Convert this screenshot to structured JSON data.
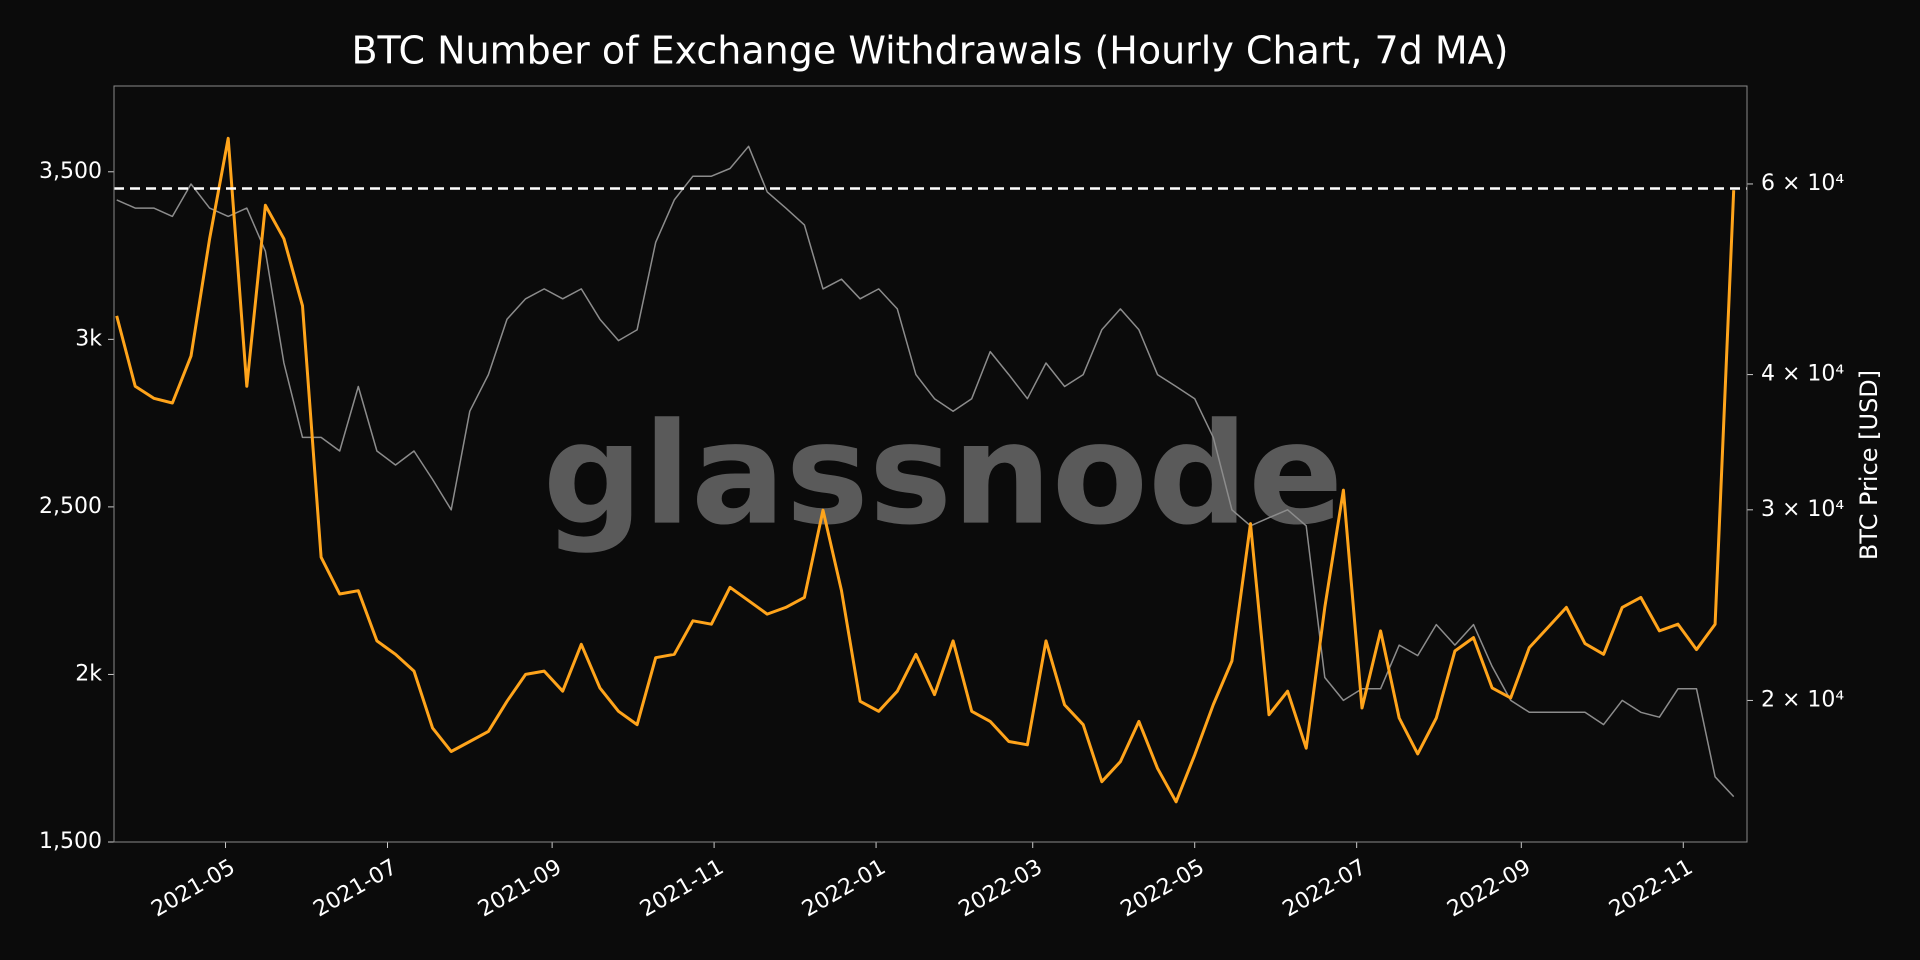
{
  "chart_data": {
    "type": "line",
    "title": "BTC Number of Exchange Withdrawals (Hourly Chart, 7d MA)",
    "y2label": "BTC Price [USD]",
    "watermark": "glassnode",
    "x": [
      "2021-03-21",
      "2021-03-28",
      "2021-04-04",
      "2021-04-11",
      "2021-04-18",
      "2021-04-25",
      "2021-05-02",
      "2021-05-09",
      "2021-05-16",
      "2021-05-23",
      "2021-05-30",
      "2021-06-06",
      "2021-06-13",
      "2021-06-20",
      "2021-06-27",
      "2021-07-04",
      "2021-07-11",
      "2021-07-18",
      "2021-07-25",
      "2021-08-01",
      "2021-08-08",
      "2021-08-15",
      "2021-08-22",
      "2021-08-29",
      "2021-09-05",
      "2021-09-12",
      "2021-09-19",
      "2021-09-26",
      "2021-10-03",
      "2021-10-10",
      "2021-10-17",
      "2021-10-24",
      "2021-10-31",
      "2021-11-07",
      "2021-11-14",
      "2021-11-21",
      "2021-11-28",
      "2021-12-05",
      "2021-12-12",
      "2021-12-19",
      "2021-12-26",
      "2022-01-02",
      "2022-01-09",
      "2022-01-16",
      "2022-01-23",
      "2022-01-30",
      "2022-02-06",
      "2022-02-13",
      "2022-02-20",
      "2022-02-27",
      "2022-03-06",
      "2022-03-13",
      "2022-03-20",
      "2022-03-27",
      "2022-04-03",
      "2022-04-10",
      "2022-04-17",
      "2022-04-24",
      "2022-05-01",
      "2022-05-08",
      "2022-05-15",
      "2022-05-22",
      "2022-05-29",
      "2022-06-05",
      "2022-06-12",
      "2022-06-19",
      "2022-06-26",
      "2022-07-03",
      "2022-07-10",
      "2022-07-17",
      "2022-07-24",
      "2022-07-31",
      "2022-08-07",
      "2022-08-14",
      "2022-08-21",
      "2022-08-28",
      "2022-09-04",
      "2022-09-11",
      "2022-09-18",
      "2022-09-25",
      "2022-10-02",
      "2022-10-09",
      "2022-10-16",
      "2022-10-23",
      "2022-10-30",
      "2022-11-06",
      "2022-11-13",
      "2022-11-20"
    ],
    "series": [
      {
        "color": "#8c8c8c",
        "axis": "y2",
        "values": [
          58000,
          57000,
          57000,
          56000,
          60000,
          57000,
          56000,
          57000,
          52000,
          41000,
          35000,
          35000,
          34000,
          39000,
          34000,
          33000,
          34000,
          32000,
          30000,
          37000,
          40000,
          45000,
          47000,
          48000,
          47000,
          48000,
          45000,
          43000,
          44000,
          53000,
          58000,
          61000,
          61000,
          62000,
          65000,
          59000,
          57000,
          55000,
          48000,
          49000,
          47000,
          48000,
          46000,
          40000,
          38000,
          37000,
          38000,
          42000,
          40000,
          38000,
          41000,
          39000,
          40000,
          44000,
          46000,
          44000,
          40000,
          39000,
          38000,
          35000,
          30000,
          29000,
          29500,
          30000,
          29000,
          21000,
          20000,
          20500,
          20500,
          22500,
          22000,
          23500,
          22500,
          23500,
          21500,
          20000,
          19500,
          19500,
          19500,
          19500,
          19000,
          20000,
          19500,
          19300,
          20500,
          20500,
          17000,
          16300
        ]
      },
      {
        "color": "#ffa41b",
        "values": [
          3070,
          2860,
          2824,
          2810,
          2950,
          3300,
          3600,
          2860,
          3400,
          3300,
          3100,
          2350,
          2240,
          2250,
          2100,
          2060,
          2010,
          1840,
          1770,
          1800,
          1830,
          1920,
          2000,
          2010,
          1950,
          2090,
          1960,
          1890,
          1850,
          2050,
          2060,
          2160,
          2150,
          2260,
          2220,
          2180,
          2200,
          2230,
          2490,
          2250,
          1920,
          1890,
          1950,
          2060,
          1940,
          2100,
          1890,
          1860,
          1800,
          1790,
          2100,
          1909,
          1850,
          1680,
          1740,
          1860,
          1720,
          1620,
          1760,
          1910,
          2040,
          2450,
          1880,
          1950,
          1780,
          2200,
          2550,
          1900,
          2130,
          1870,
          1763,
          1870,
          2070,
          2110,
          1960,
          1930,
          2080,
          2140,
          2200,
          2092,
          2060,
          2200,
          2230,
          2130,
          2150,
          2074,
          2150,
          3445
        ]
      }
    ],
    "reference_line": 3450,
    "reference_color": "#ffffff",
    "xlim": [
      "2021-03-20",
      "2022-11-25"
    ],
    "xticks": [
      "2021-05",
      "2021-07",
      "2021-09",
      "2021-11",
      "2022-01",
      "2022-03",
      "2022-05",
      "2022-07",
      "2022-09",
      "2022-11"
    ],
    "ylim": [
      1500,
      3756
    ],
    "yticks": [
      {
        "value": 1500,
        "label": "1,500"
      },
      {
        "value": 2000,
        "label": "2k"
      },
      {
        "value": 2500,
        "label": "2,500"
      },
      {
        "value": 3000,
        "label": "3k"
      },
      {
        "value": 3500,
        "label": "3,500"
      }
    ],
    "y2lim": [
      14800,
      73900
    ],
    "y2scale": "log",
    "y2ticks": [
      {
        "value": 20000,
        "label": "2 × 10⁴"
      },
      {
        "value": 30000,
        "label": "3 × 10⁴"
      },
      {
        "value": 40000,
        "label": "4 × 10⁴"
      },
      {
        "value": 60000,
        "label": "6 × 10⁴"
      }
    ]
  }
}
